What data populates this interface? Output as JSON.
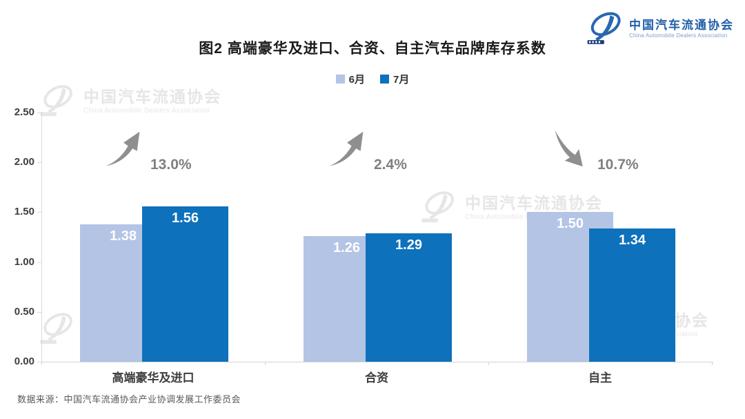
{
  "header": {
    "title": "图2  高端豪华及进口、合资、自主汽车品牌库存系数",
    "logo": {
      "name": "中国汽车流通协会",
      "subtitle": "China Automobile Dealers Association"
    }
  },
  "legend": {
    "items": [
      {
        "label": "6月",
        "color": "#b3c4e5"
      },
      {
        "label": "7月",
        "color": "#0e71bb"
      }
    ]
  },
  "chart_data": {
    "type": "bar",
    "title": "图2 高端豪华及进口、合资、自主汽车品牌库存系数",
    "categories": [
      "高端豪华及进口",
      "合资",
      "自主"
    ],
    "series": [
      {
        "name": "6月",
        "color": "#b3c4e5",
        "values": [
          1.38,
          1.26,
          1.5
        ]
      },
      {
        "name": "7月",
        "color": "#0e71bb",
        "values": [
          1.56,
          1.29,
          1.34
        ]
      }
    ],
    "value_labels": [
      [
        "1.38",
        "1.26",
        "1.50"
      ],
      [
        "1.56",
        "1.29",
        "1.34"
      ]
    ],
    "annotations": [
      {
        "category": "高端豪华及进口",
        "label": "13.0%",
        "direction": "up"
      },
      {
        "category": "合资",
        "label": "2.4%",
        "direction": "up"
      },
      {
        "category": "自主",
        "label": "10.7%",
        "direction": "down"
      }
    ],
    "ylabel": "",
    "xlabel": "",
    "ylim": [
      0,
      2.5
    ],
    "ytick_labels": [
      "0.00",
      "0.50",
      "1.00",
      "1.50",
      "2.00",
      "2.50"
    ],
    "grid": false,
    "legend_position": "top",
    "value_label_color": "#ffffff",
    "annotation_color": "#8f8f8f"
  },
  "watermark": {
    "name": "中国汽车流通协会",
    "subtitle": "China Automobile Dealers Association"
  },
  "footer": {
    "source": "数据来源：中国汽车流通协会产业协调发展工作委员会"
  }
}
